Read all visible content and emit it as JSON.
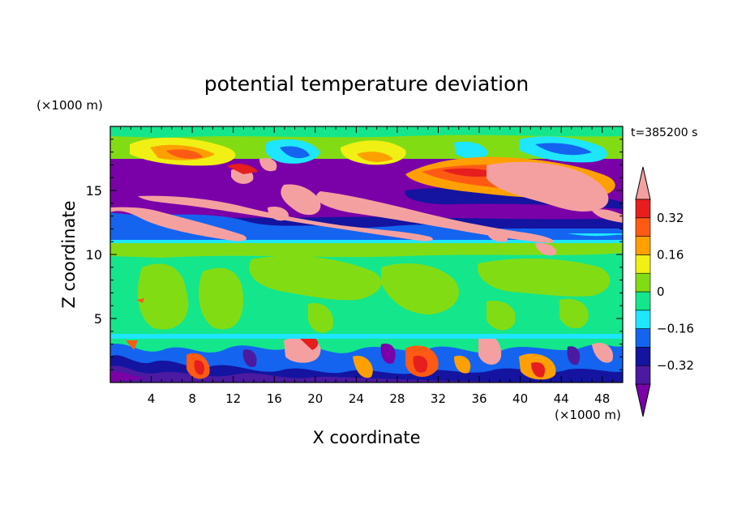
{
  "chart_data": {
    "type": "heatmap",
    "title": "potential temperature deviation",
    "xlabel": "X coordinate",
    "ylabel": "Z coordinate",
    "x_unit": "(×1000 m)",
    "y_unit": "(×1000 m)",
    "time_label": "t=385200 s",
    "xlim": [
      0,
      50
    ],
    "ylim": [
      0,
      20
    ],
    "x_ticks": [
      4,
      8,
      12,
      16,
      20,
      24,
      28,
      32,
      36,
      40,
      44,
      48
    ],
    "y_ticks": [
      5,
      10,
      15
    ],
    "colorbar": {
      "levels": [
        -0.4,
        -0.32,
        -0.24,
        -0.16,
        -0.08,
        0,
        0.08,
        0.16,
        0.24,
        0.32,
        0.4
      ],
      "labeled_ticks": [
        {
          "value": 0.32,
          "label": "0.32"
        },
        {
          "value": 0.16,
          "label": "0.16"
        },
        {
          "value": 0,
          "label": "0"
        },
        {
          "value": -0.16,
          "label": "−0.16"
        },
        {
          "value": -0.32,
          "label": "−0.32"
        }
      ],
      "colors": [
        "#7a00a8",
        "#4b1aa0",
        "#1414a0",
        "#1464f0",
        "#1ee6ff",
        "#14e68c",
        "#82dc14",
        "#f0f014",
        "#ffa000",
        "#ff5a14",
        "#e61e1e",
        "#f5a0a0"
      ],
      "extend": "both"
    },
    "description_bands": [
      {
        "z_range": [
          16.5,
          19.5
        ],
        "dominant": "green with yellow/orange highs and blue/purple lows"
      },
      {
        "z_range": [
          11.5,
          16.5
        ],
        "dominant": "purple (≤ -0.40) with pink (≥ 0.40) filaments"
      },
      {
        "z_range": [
          3.5,
          11
        ],
        "dominant": "green (0 to 0.08) and light green (-0.08 to 0)"
      },
      {
        "z_range": [
          0,
          3.5
        ],
        "dominant": "mixed turbulent field, all levels"
      }
    ]
  }
}
